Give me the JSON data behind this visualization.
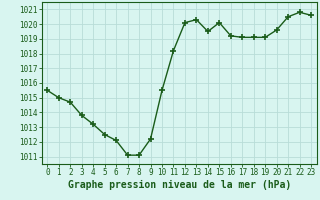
{
  "x": [
    0,
    1,
    2,
    3,
    4,
    5,
    6,
    7,
    8,
    9,
    10,
    11,
    12,
    13,
    14,
    15,
    16,
    17,
    18,
    19,
    20,
    21,
    22,
    23
  ],
  "y": [
    1015.5,
    1015.0,
    1014.7,
    1013.8,
    1013.2,
    1012.5,
    1012.1,
    1011.1,
    1011.1,
    1012.2,
    1015.5,
    1018.2,
    1020.1,
    1020.3,
    1019.5,
    1020.1,
    1019.2,
    1019.1,
    1019.1,
    1019.1,
    1019.6,
    1020.5,
    1020.8,
    1020.6
  ],
  "line_color": "#1a5c1a",
  "marker": "+",
  "marker_size": 4,
  "marker_lw": 1.2,
  "bg_color": "#d8f5f0",
  "grid_color": "#b8ddd8",
  "xlabel": "Graphe pression niveau de la mer (hPa)",
  "xlabel_fontsize": 7,
  "ylim_min": 1010.5,
  "ylim_max": 1021.5,
  "xlim_min": -0.5,
  "xlim_max": 23.5,
  "axis_color": "#1a5c1a",
  "tick_label_color": "#1a5c1a",
  "tick_fontsize": 5.5,
  "linewidth": 1.0,
  "yticks": [
    1011,
    1012,
    1013,
    1014,
    1015,
    1016,
    1017,
    1018,
    1019,
    1020,
    1021
  ]
}
